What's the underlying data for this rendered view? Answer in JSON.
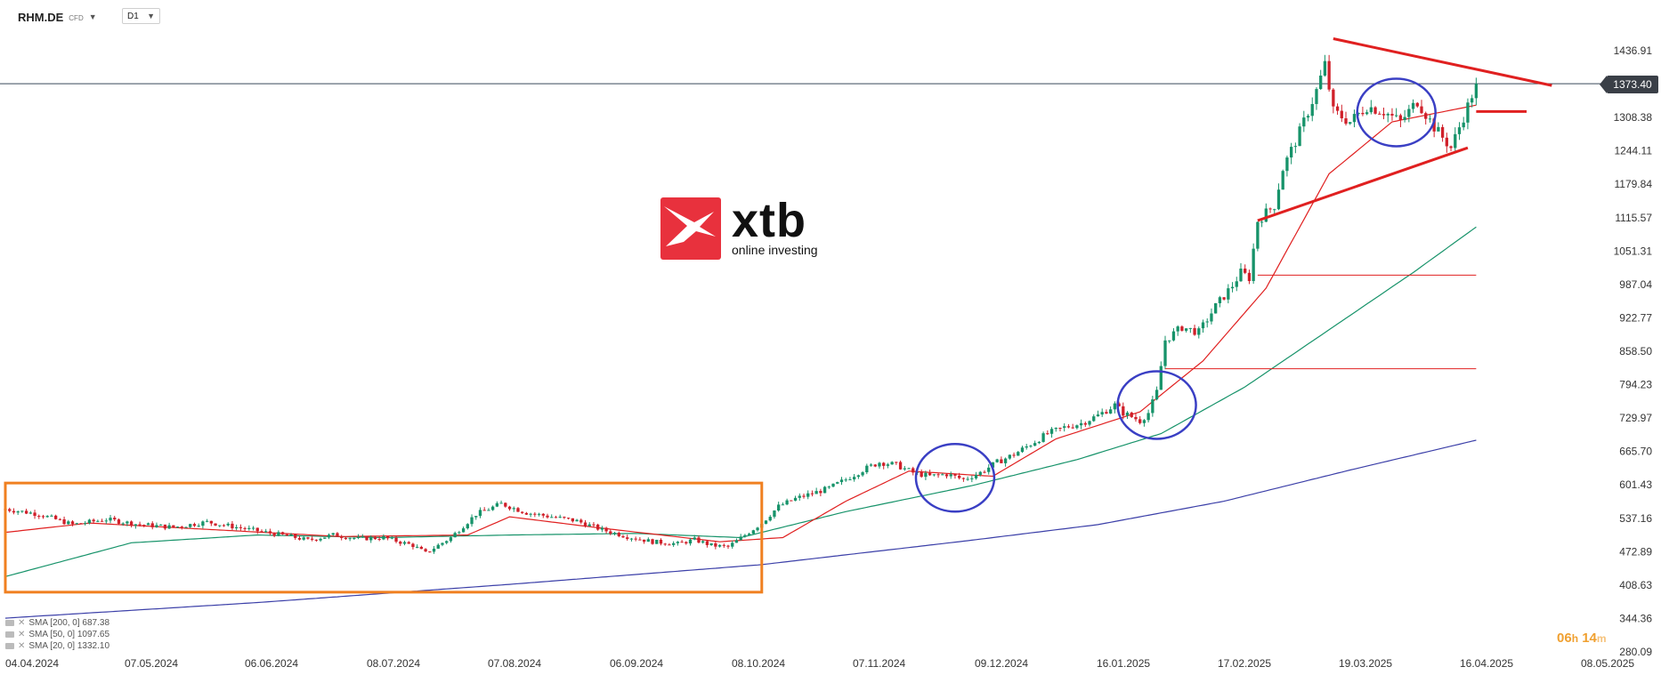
{
  "header": {
    "symbol": "RHM.DE",
    "instrument_type": "CFD",
    "timeframe": "D1",
    "caret_icon": "chevron-down-icon"
  },
  "logo": {
    "name": "xtb",
    "tagline": "online investing"
  },
  "current_price_label": "1373.40",
  "timer": {
    "hours": "06",
    "h": "h",
    "minutes": "14",
    "m": "m"
  },
  "legend": {
    "items": [
      {
        "label": "SMA [200, 0] 687.38",
        "color": "#3b3fa8"
      },
      {
        "label": "SMA [50, 0] 1097.65",
        "color": "#17936a"
      },
      {
        "label": "SMA [20, 0] 1332.10",
        "color": "#e02020"
      }
    ]
  },
  "chart_data": {
    "type": "candlestick",
    "symbol": "RHM.DE",
    "timeframe": "D1",
    "y_axis_ticks": [
      "1436.91",
      "1373.40",
      "1308.38",
      "1244.11",
      "1179.84",
      "1115.57",
      "1051.31",
      "987.04",
      "922.77",
      "858.50",
      "794.23",
      "729.97",
      "665.70",
      "601.43",
      "537.16",
      "472.89",
      "408.63",
      "344.36",
      "280.09"
    ],
    "ylim": [
      280.09,
      1436.91
    ],
    "x_axis_ticks": [
      "04.04.2024",
      "07.05.2024",
      "06.06.2024",
      "08.07.2024",
      "07.08.2024",
      "06.09.2024",
      "08.10.2024",
      "07.11.2024",
      "09.12.2024",
      "16.01.2025",
      "17.02.2025",
      "19.03.2025",
      "16.04.2025",
      "08.05.2025"
    ],
    "last_price": 1373.4,
    "price_path": [
      [
        0,
        555
      ],
      [
        8,
        545
      ],
      [
        16,
        525
      ],
      [
        24,
        535
      ],
      [
        32,
        525
      ],
      [
        40,
        520
      ],
      [
        48,
        530
      ],
      [
        55,
        520
      ],
      [
        62,
        510
      ],
      [
        68,
        502
      ],
      [
        72,
        495
      ],
      [
        78,
        505
      ],
      [
        84,
        498
      ],
      [
        90,
        500
      ],
      [
        97,
        485
      ],
      [
        100,
        470
      ],
      [
        106,
        500
      ],
      [
        112,
        545
      ],
      [
        118,
        565
      ],
      [
        124,
        548
      ],
      [
        130,
        540
      ],
      [
        136,
        532
      ],
      [
        142,
        515
      ],
      [
        148,
        502
      ],
      [
        154,
        492
      ],
      [
        160,
        488
      ],
      [
        164,
        496
      ],
      [
        168,
        485
      ],
      [
        172,
        482
      ],
      [
        176,
        505
      ],
      [
        180,
        528
      ],
      [
        184,
        560
      ],
      [
        188,
        575
      ],
      [
        192,
        585
      ],
      [
        196,
        595
      ],
      [
        200,
        612
      ],
      [
        204,
        630
      ],
      [
        208,
        645
      ],
      [
        212,
        640
      ],
      [
        216,
        625
      ],
      [
        220,
        618
      ],
      [
        224,
        622
      ],
      [
        228,
        612
      ],
      [
        232,
        625
      ],
      [
        236,
        645
      ],
      [
        240,
        660
      ],
      [
        244,
        680
      ],
      [
        248,
        700
      ],
      [
        252,
        712
      ],
      [
        256,
        720
      ],
      [
        260,
        735
      ],
      [
        264,
        755
      ],
      [
        266,
        740
      ],
      [
        270,
        725
      ],
      [
        272,
        740
      ],
      [
        274,
        780
      ],
      [
        276,
        880
      ],
      [
        280,
        905
      ],
      [
        284,
        895
      ],
      [
        288,
        945
      ],
      [
        292,
        985
      ],
      [
        294,
        1010
      ],
      [
        296,
        1000
      ],
      [
        298,
        1110
      ],
      [
        302,
        1140
      ],
      [
        304,
        1210
      ],
      [
        308,
        1280
      ],
      [
        312,
        1360
      ],
      [
        314,
        1410
      ],
      [
        316,
        1320
      ],
      [
        320,
        1300
      ],
      [
        324,
        1330
      ],
      [
        328,
        1320
      ],
      [
        332,
        1300
      ],
      [
        336,
        1340
      ],
      [
        340,
        1290
      ],
      [
        344,
        1250
      ],
      [
        348,
        1330
      ],
      [
        350,
        1373.4
      ]
    ],
    "sma_200": {
      "name": "SMA [200, 0]",
      "last": 687.38,
      "points": [
        [
          0,
          345
        ],
        [
          60,
          375
        ],
        [
          120,
          410
        ],
        [
          180,
          448
        ],
        [
          230,
          495
        ],
        [
          260,
          525
        ],
        [
          290,
          570
        ],
        [
          320,
          630
        ],
        [
          350,
          687.38
        ]
      ]
    },
    "sma_50": {
      "name": "SMA [50, 0]",
      "last": 1097.65,
      "points": [
        [
          0,
          425
        ],
        [
          30,
          490
        ],
        [
          60,
          505
        ],
        [
          90,
          500
        ],
        [
          120,
          505
        ],
        [
          150,
          508
        ],
        [
          175,
          500
        ],
        [
          200,
          550
        ],
        [
          230,
          600
        ],
        [
          255,
          650
        ],
        [
          275,
          700
        ],
        [
          295,
          790
        ],
        [
          315,
          900
        ],
        [
          335,
          1010
        ],
        [
          350,
          1097.65
        ]
      ]
    },
    "sma_20": {
      "name": "SMA [20, 0]",
      "last": 1332.1,
      "points": [
        [
          0,
          510
        ],
        [
          20,
          528
        ],
        [
          50,
          515
        ],
        [
          80,
          502
        ],
        [
          110,
          505
        ],
        [
          120,
          540
        ],
        [
          140,
          520
        ],
        [
          170,
          492
        ],
        [
          185,
          500
        ],
        [
          200,
          570
        ],
        [
          215,
          628
        ],
        [
          235,
          618
        ],
        [
          250,
          690
        ],
        [
          270,
          742
        ],
        [
          285,
          840
        ],
        [
          300,
          980
        ],
        [
          315,
          1200
        ],
        [
          330,
          1300
        ],
        [
          350,
          1332.1
        ]
      ]
    },
    "annotations": {
      "consolidation_box": {
        "x_range": [
          0,
          180
        ],
        "y_range": [
          395,
          605
        ],
        "color": "#f08020"
      },
      "circles": [
        {
          "center": [
            226,
            615
          ],
          "color": "#3a3fc4"
        },
        {
          "center": [
            274,
            755
          ],
          "color": "#3a3fc4"
        },
        {
          "center": [
            331,
            1318
          ],
          "color": "#3a3fc4"
        }
      ],
      "triangle_upper": {
        "from": [
          316,
          1460
        ],
        "to": [
          368,
          1370
        ],
        "color": "#e02020"
      },
      "triangle_lower": {
        "from": [
          298,
          1110
        ],
        "to": [
          348,
          1250
        ],
        "color": "#e02020"
      },
      "horizontal_levels": [
        {
          "value": 1005,
          "x_range": [
            298,
            350
          ]
        },
        {
          "value": 825,
          "x_range": [
            276,
            350
          ]
        },
        {
          "value": 1320,
          "x_range": [
            350,
            362
          ]
        }
      ]
    }
  }
}
